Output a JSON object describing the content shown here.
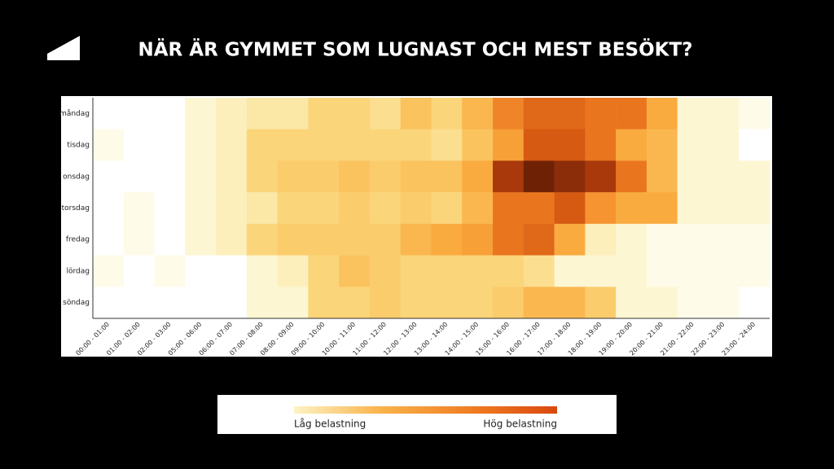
{
  "chart_data": {
    "type": "heatmap",
    "title": "NÄR ÄR GYMMET SOM LUGNAST OCH MEST BESÖKT?",
    "x": [
      "00:00 - 01:00",
      "01:00 - 02:00",
      "02:00 - 03:00",
      "05:00 - 06:00",
      "06:00 - 07:00",
      "07:00 - 08:00",
      "08:00 - 09:00",
      "09:00 - 10:00",
      "10:00 - 11:00",
      "11:00 - 12:00",
      "12:00 - 13:00",
      "13:00 - 14:00",
      "14:00 - 15:00",
      "15:00 - 16:00",
      "16:00 - 17:00",
      "17:00 - 18:00",
      "18:00 - 19:00",
      "19:00 - 20:00",
      "20:00 - 21:00",
      "21:00 - 22:00",
      "22:00 - 23:00",
      "23:00 - 24:00"
    ],
    "y": [
      "måndag",
      "tisdag",
      "onsdag",
      "torsdag",
      "fredag",
      "lördag",
      "söndag"
    ],
    "z": [
      [
        0,
        0,
        0,
        1,
        1.5,
        2,
        2,
        3,
        3,
        2.5,
        4,
        3,
        4.5,
        6.5,
        7.5,
        7.5,
        7,
        7,
        5,
        1,
        1,
        0.5
      ],
      [
        0.5,
        0,
        0,
        1,
        1.5,
        3,
        3,
        3,
        3,
        3,
        3,
        2.5,
        4,
        5.5,
        8,
        8,
        7,
        5,
        4.5,
        1,
        1,
        0
      ],
      [
        0,
        0,
        0,
        1,
        1.5,
        3,
        3.5,
        3.5,
        4,
        3.5,
        4,
        4,
        5,
        9,
        10,
        9.5,
        9,
        7,
        4.5,
        1,
        1,
        1
      ],
      [
        0,
        0.5,
        0,
        1,
        1.5,
        2,
        3,
        3,
        3.5,
        3,
        3.5,
        3,
        4.5,
        7,
        7,
        8,
        6,
        5,
        5,
        1,
        1,
        1
      ],
      [
        0,
        0.5,
        0,
        1,
        1.5,
        3,
        3.5,
        3.5,
        3.5,
        3.5,
        4.5,
        5,
        5.5,
        7,
        7.5,
        5,
        1.5,
        1,
        0.5,
        0.5,
        0.5,
        0.5
      ],
      [
        0.5,
        0,
        0.5,
        0,
        0,
        1,
        1.5,
        3,
        4,
        3.5,
        3,
        3,
        3,
        3,
        2.5,
        1,
        1,
        1,
        0.5,
        0.5,
        0.5,
        0.5
      ],
      [
        0,
        0,
        0,
        0,
        0,
        1,
        1,
        3,
        3,
        3.5,
        3,
        3,
        3,
        3.5,
        4.5,
        4.5,
        3.5,
        1,
        1,
        0.5,
        0.5,
        0
      ]
    ],
    "zlim": [
      0,
      10
    ],
    "colorscale": [
      "#ffffff",
      "#fdf6d2",
      "#fbe7a6",
      "#fbd57a",
      "#fac35e",
      "#f9ab40",
      "#f59430",
      "#e9761f",
      "#d65a12",
      "#a9390b",
      "#6f2106"
    ],
    "legend": {
      "low": "Låg belastning",
      "high": "Hög belastning",
      "colors": [
        "#fdf3c4",
        "#f9b24a",
        "#f07f23",
        "#d9480f"
      ]
    }
  }
}
